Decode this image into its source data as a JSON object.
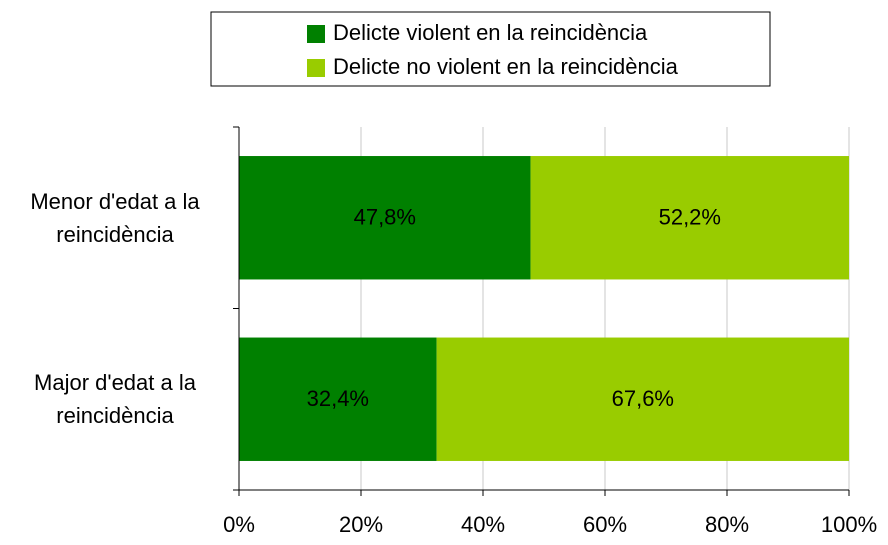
{
  "chart_data": {
    "type": "stacked_bar_horizontal",
    "categories": [
      "Menor d'edat a la reincidència",
      "Major d'edat a la reincidència"
    ],
    "series": [
      {
        "name": "Delicte violent en la reincidència",
        "color": "#008000",
        "values": [
          47.8,
          32.4
        ],
        "value_labels": [
          "47,8%",
          "32,4%"
        ]
      },
      {
        "name": "Delicte no violent en la reincidència",
        "color": "#99cc00",
        "values": [
          52.2,
          67.6
        ],
        "value_labels": [
          "52,2%",
          "67,6%"
        ]
      }
    ],
    "xlim": [
      0,
      100
    ],
    "xticks": [
      {
        "value": 0,
        "label": "0%"
      },
      {
        "value": 20,
        "label": "20%"
      },
      {
        "value": 40,
        "label": "40%"
      },
      {
        "value": 60,
        "label": "60%"
      },
      {
        "value": 80,
        "label": "80%"
      },
      {
        "value": 100,
        "label": "100%"
      }
    ],
    "grid": true,
    "legend": "top"
  }
}
